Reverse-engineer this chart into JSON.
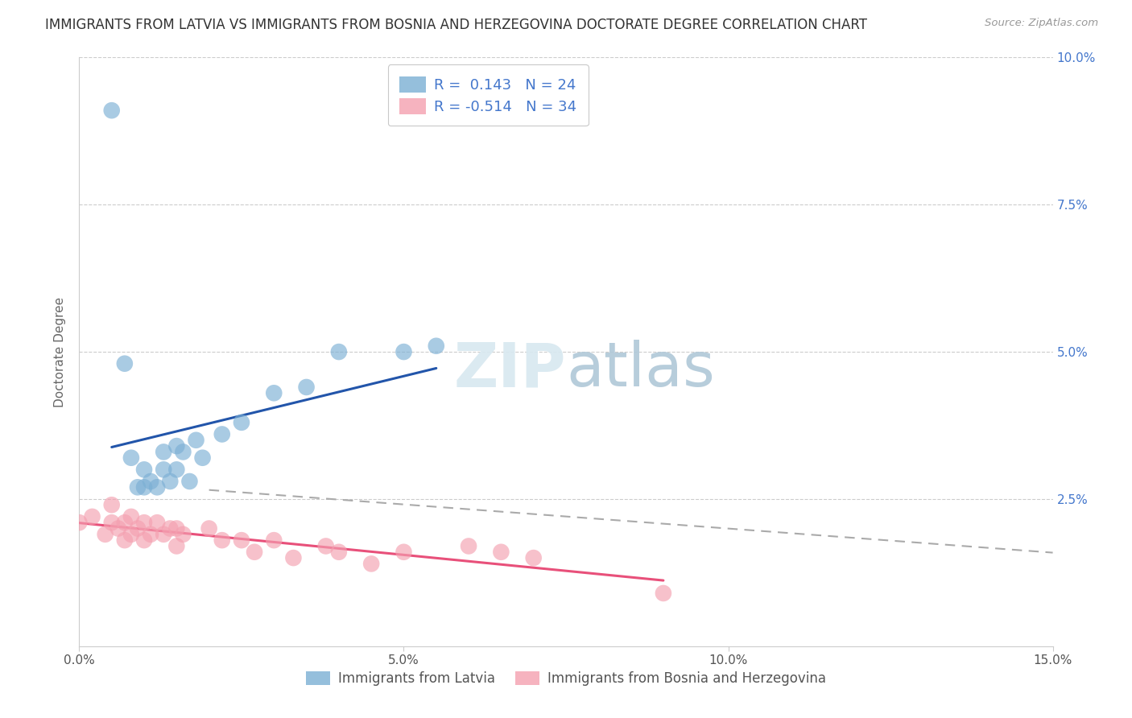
{
  "title": "IMMIGRANTS FROM LATVIA VS IMMIGRANTS FROM BOSNIA AND HERZEGOVINA DOCTORATE DEGREE CORRELATION CHART",
  "source": "Source: ZipAtlas.com",
  "ylabel": "Doctorate Degree",
  "xlim": [
    0.0,
    0.15
  ],
  "ylim": [
    0.0,
    0.1
  ],
  "xticks": [
    0.0,
    0.05,
    0.1,
    0.15
  ],
  "xtick_labels": [
    "0.0%",
    "5.0%",
    "10.0%",
    "15.0%"
  ],
  "yticks": [
    0.0,
    0.025,
    0.05,
    0.075,
    0.1
  ],
  "ytick_labels": [
    "",
    "2.5%",
    "5.0%",
    "7.5%",
    "10.0%"
  ],
  "latvia_color": "#7BAFD4",
  "bosnia_color": "#F4A0B0",
  "latvia_line_color": "#2255AA",
  "bosnia_line_color": "#E8507A",
  "R_latvia": 0.143,
  "N_latvia": 24,
  "R_bosnia": -0.514,
  "N_bosnia": 34,
  "legend_labels": [
    "Immigrants from Latvia",
    "Immigrants from Bosnia and Herzegovina"
  ],
  "background_color": "#FFFFFF",
  "grid_color": "#CCCCCC",
  "latvia_x": [
    0.005,
    0.007,
    0.008,
    0.009,
    0.01,
    0.01,
    0.011,
    0.012,
    0.013,
    0.013,
    0.014,
    0.015,
    0.015,
    0.016,
    0.017,
    0.018,
    0.019,
    0.022,
    0.025,
    0.03,
    0.035,
    0.04,
    0.05,
    0.055
  ],
  "latvia_y": [
    0.091,
    0.048,
    0.032,
    0.027,
    0.027,
    0.03,
    0.028,
    0.027,
    0.03,
    0.033,
    0.028,
    0.03,
    0.034,
    0.033,
    0.028,
    0.035,
    0.032,
    0.036,
    0.038,
    0.043,
    0.044,
    0.05,
    0.05,
    0.051
  ],
  "bosnia_x": [
    0.0,
    0.002,
    0.004,
    0.005,
    0.005,
    0.006,
    0.007,
    0.007,
    0.008,
    0.008,
    0.009,
    0.01,
    0.01,
    0.011,
    0.012,
    0.013,
    0.014,
    0.015,
    0.015,
    0.016,
    0.02,
    0.022,
    0.025,
    0.027,
    0.03,
    0.033,
    0.038,
    0.04,
    0.045,
    0.05,
    0.06,
    0.065,
    0.07,
    0.09
  ],
  "bosnia_y": [
    0.021,
    0.022,
    0.019,
    0.021,
    0.024,
    0.02,
    0.018,
    0.021,
    0.019,
    0.022,
    0.02,
    0.018,
    0.021,
    0.019,
    0.021,
    0.019,
    0.02,
    0.017,
    0.02,
    0.019,
    0.02,
    0.018,
    0.018,
    0.016,
    0.018,
    0.015,
    0.017,
    0.016,
    0.014,
    0.016,
    0.017,
    0.016,
    0.015,
    0.009
  ],
  "title_fontsize": 12,
  "axis_label_fontsize": 11,
  "tick_fontsize": 11,
  "legend_fontsize": 13
}
